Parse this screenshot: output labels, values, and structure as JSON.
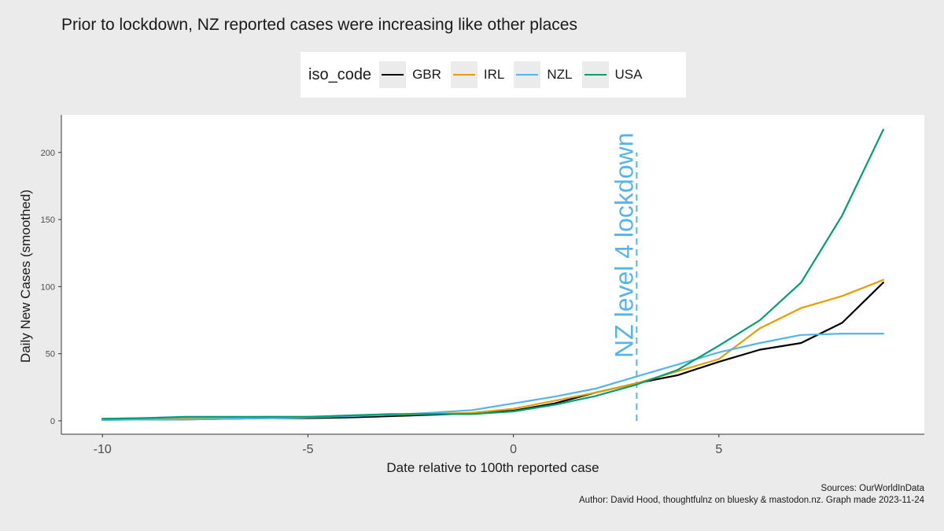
{
  "chart_data": {
    "type": "line",
    "title": "Prior to lockdown, NZ reported cases were increasing like other places",
    "xlabel": "Date relative to 100th reported case",
    "ylabel": "Daily New Cases (smoothed)",
    "xlim": [
      -11,
      10
    ],
    "ylim": [
      -10,
      228
    ],
    "x_ticks": [
      -10,
      -5,
      0,
      5
    ],
    "y_ticks": [
      0,
      50,
      100,
      150,
      200
    ],
    "grid": false,
    "legend": {
      "title": "iso_code",
      "position": "top"
    },
    "x": [
      -10,
      -9,
      -8,
      -7,
      -6,
      -5,
      -4,
      -3,
      -2,
      -1,
      0,
      1,
      2,
      3,
      4,
      5,
      6,
      7,
      8,
      9
    ],
    "series": [
      {
        "name": "GBR",
        "color": "#000000",
        "values": [
          1,
          1,
          1,
          1.5,
          2,
          2,
          2.5,
          3.5,
          4.5,
          5.5,
          7.5,
          13,
          21,
          28,
          34,
          44,
          53,
          58,
          73,
          103
        ]
      },
      {
        "name": "IRL",
        "color": "#E69F00",
        "values": [
          1.5,
          2,
          2,
          2.5,
          3,
          3,
          3.5,
          4.5,
          5,
          6,
          9,
          15,
          21,
          28,
          37,
          46,
          69,
          84,
          93,
          105
        ]
      },
      {
        "name": "NZL",
        "color": "#56B4E9",
        "values": [
          0.5,
          1,
          1,
          1.5,
          2,
          2.5,
          3.5,
          4.5,
          6,
          8,
          13,
          18,
          24,
          33,
          42,
          51,
          58,
          64,
          65,
          65
        ]
      },
      {
        "name": "USA",
        "color": "#009E73",
        "values": [
          1.5,
          2,
          3,
          3,
          3,
          3,
          4,
          5,
          5,
          5,
          7,
          12,
          18.5,
          27,
          38,
          56,
          75,
          103,
          153,
          217
        ]
      }
    ],
    "annotation": {
      "text": "NZ level 4 lockdown",
      "x": 3,
      "y_range": [
        0,
        200
      ],
      "color": "#56B4E9"
    }
  },
  "caption": {
    "line1": "Sources: OurWorldInData",
    "line2": "Author: David Hood, thoughtfulnz on bluesky & mastodon.nz. Graph made  2023-11-24"
  }
}
